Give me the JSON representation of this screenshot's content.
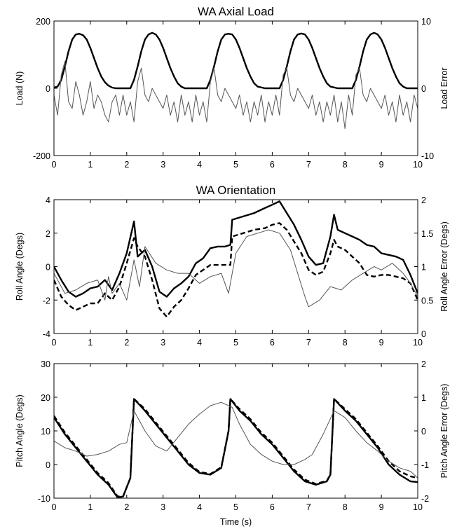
{
  "chart_data": [
    {
      "type": "line",
      "title": "WA Axial Load",
      "xlabel": "",
      "ylabel": "Load (N)",
      "y2label": "Load Error",
      "xlim": [
        0,
        10
      ],
      "ylim": [
        -200,
        200
      ],
      "y2lim": [
        -10,
        10
      ],
      "xticks": [
        "0",
        "1",
        "2",
        "3",
        "4",
        "5",
        "6",
        "7",
        "8",
        "9",
        "10"
      ],
      "yticks": [
        "-200",
        "0",
        "200"
      ],
      "y2ticks": [
        "-10",
        "0",
        "10"
      ],
      "grid": false,
      "series": [
        {
          "axis": "left",
          "style": "thick-solid",
          "color": "#000000",
          "x": [
            0,
            0.1,
            0.2,
            0.3,
            0.4,
            0.5,
            0.6,
            0.7,
            0.8,
            0.9,
            1.0,
            1.1,
            1.2,
            1.3,
            1.4,
            1.5,
            1.6,
            1.7,
            2.1,
            2.2,
            2.3,
            2.4,
            2.5,
            2.6,
            2.7,
            2.8,
            2.9,
            3.0,
            3.1,
            3.2,
            3.3,
            3.4,
            3.5,
            3.6,
            3.8,
            4.2,
            4.3,
            4.4,
            4.5,
            4.6,
            4.7,
            4.8,
            4.9,
            5.0,
            5.1,
            5.2,
            5.3,
            5.4,
            5.5,
            5.6,
            5.8,
            6.2,
            6.3,
            6.4,
            6.5,
            6.6,
            6.7,
            6.8,
            6.9,
            7.0,
            7.1,
            7.2,
            7.3,
            7.4,
            7.5,
            7.6,
            7.8,
            8.2,
            8.3,
            8.4,
            8.5,
            8.6,
            8.7,
            8.8,
            8.9,
            9.0,
            9.1,
            9.2,
            9.3,
            9.4,
            9.5,
            9.6,
            9.7,
            10.0
          ],
          "y": [
            2,
            5,
            25,
            65,
            110,
            145,
            160,
            162,
            158,
            145,
            120,
            90,
            60,
            35,
            18,
            8,
            2,
            0,
            0,
            25,
            65,
            110,
            145,
            160,
            165,
            160,
            145,
            120,
            90,
            60,
            35,
            15,
            5,
            0,
            0,
            0,
            25,
            65,
            110,
            145,
            160,
            162,
            160,
            145,
            120,
            90,
            60,
            35,
            15,
            5,
            0,
            0,
            25,
            65,
            110,
            145,
            160,
            163,
            160,
            145,
            120,
            90,
            60,
            35,
            15,
            5,
            0,
            0,
            25,
            65,
            110,
            145,
            160,
            165,
            160,
            145,
            120,
            90,
            60,
            35,
            15,
            5,
            0,
            0
          ]
        },
        {
          "axis": "right",
          "style": "thin-solid",
          "color": "#555555",
          "x": [
            0,
            0.1,
            0.2,
            0.3,
            0.4,
            0.5,
            0.6,
            0.7,
            0.8,
            0.9,
            1.0,
            1.1,
            1.2,
            1.3,
            1.4,
            1.5,
            1.6,
            1.7,
            1.8,
            1.9,
            2.0,
            2.1,
            2.2,
            2.3,
            2.4,
            2.5,
            2.6,
            2.7,
            2.8,
            2.9,
            3.0,
            3.1,
            3.2,
            3.3,
            3.4,
            3.5,
            3.6,
            3.7,
            3.8,
            3.9,
            4.0,
            4.1,
            4.2,
            4.3,
            4.4,
            4.5,
            4.6,
            4.7,
            4.8,
            4.9,
            5.0,
            5.1,
            5.2,
            5.3,
            5.4,
            5.5,
            5.6,
            5.7,
            5.8,
            5.9,
            6.0,
            6.1,
            6.2,
            6.3,
            6.4,
            6.5,
            6.6,
            6.7,
            6.8,
            6.9,
            7.0,
            7.1,
            7.2,
            7.3,
            7.4,
            7.5,
            7.6,
            7.7,
            7.8,
            7.9,
            8.0,
            8.1,
            8.2,
            8.3,
            8.4,
            8.5,
            8.6,
            8.7,
            8.8,
            8.9,
            9.0,
            9.1,
            9.2,
            9.3,
            9.4,
            9.5,
            9.6,
            9.7,
            9.8,
            9.9,
            10.0
          ],
          "y": [
            -1,
            -4,
            2,
            4,
            -2,
            -3,
            1,
            -1,
            -4,
            -2,
            1,
            -3,
            -1,
            -2,
            -4,
            -5,
            -2,
            -1,
            -4,
            -1,
            -4,
            -2,
            -5,
            1,
            3,
            -1,
            -2,
            0,
            -1,
            -2,
            -3,
            -1,
            -4,
            -2,
            -5,
            -1,
            -4,
            -2,
            -5,
            -1,
            -4,
            -2,
            -5,
            1,
            3,
            -1,
            -2,
            0,
            -1,
            -2,
            -3,
            -1,
            -4,
            -2,
            -5,
            -2,
            -4,
            -1,
            -5,
            -2,
            -4,
            -1,
            -4,
            2,
            3,
            -1,
            -2,
            0,
            -1,
            -2,
            -3,
            -1,
            -4,
            -2,
            -5,
            -2,
            -4,
            -1,
            -5,
            -2,
            -6,
            -1,
            -4,
            2,
            3,
            -1,
            -2,
            0,
            -1,
            -2,
            -3,
            -1,
            -4,
            -2,
            -5,
            -1,
            -4,
            -2,
            -5,
            -1,
            -3
          ]
        }
      ]
    },
    {
      "type": "line",
      "title": "WA Orientation",
      "xlabel": "",
      "ylabel": "Roll Angle (Degs)",
      "y2label": "Roll Angle Error (Degs)",
      "xlim": [
        0,
        10
      ],
      "ylim": [
        -4,
        4
      ],
      "y2lim": [
        0,
        2
      ],
      "xticks": [
        "0",
        "1",
        "2",
        "3",
        "4",
        "5",
        "6",
        "7",
        "8",
        "9",
        "10"
      ],
      "yticks": [
        "-4",
        "-2",
        "0",
        "2",
        "4"
      ],
      "y2ticks": [
        "0",
        "0.5",
        "1",
        "1.5",
        "2"
      ],
      "grid": false,
      "series": [
        {
          "axis": "left",
          "style": "thick-solid",
          "color": "#000000",
          "x": [
            0,
            0.2,
            0.4,
            0.6,
            0.8,
            1.0,
            1.2,
            1.4,
            1.6,
            1.8,
            2.0,
            2.2,
            2.3,
            2.5,
            2.7,
            2.9,
            3.1,
            3.3,
            3.5,
            3.7,
            3.9,
            4.1,
            4.3,
            4.5,
            4.7,
            4.85,
            4.9,
            5.2,
            5.5,
            5.8,
            6.0,
            6.2,
            6.4,
            6.6,
            6.8,
            7.0,
            7.2,
            7.4,
            7.6,
            7.7,
            7.8,
            8.0,
            8.2,
            8.4,
            8.6,
            8.8,
            9.0,
            9.2,
            9.4,
            9.6,
            9.8,
            10.0
          ],
          "y": [
            0,
            -0.8,
            -1.5,
            -1.8,
            -1.6,
            -1.3,
            -1.2,
            -0.8,
            -1.4,
            -0.4,
            0.8,
            2.7,
            0.6,
            1.0,
            0.0,
            -1.5,
            -1.8,
            -1.3,
            -1.0,
            -0.6,
            0.2,
            0.5,
            1.1,
            1.2,
            1.2,
            1.3,
            2.8,
            3.0,
            3.2,
            3.5,
            3.7,
            3.9,
            3.2,
            2.5,
            1.6,
            0.6,
            0.1,
            0.2,
            1.8,
            3.1,
            2.2,
            2.0,
            1.8,
            1.6,
            1.3,
            1.2,
            0.8,
            0.7,
            0.6,
            0.4,
            -0.5,
            -1.6
          ]
        },
        {
          "axis": "left",
          "style": "thick-dashed",
          "color": "#000000",
          "x": [
            0,
            0.2,
            0.4,
            0.6,
            0.8,
            1.0,
            1.2,
            1.4,
            1.6,
            1.8,
            2.0,
            2.2,
            2.3,
            2.5,
            2.7,
            2.9,
            3.1,
            3.3,
            3.5,
            3.7,
            3.9,
            4.1,
            4.3,
            4.5,
            4.7,
            4.85,
            4.9,
            5.2,
            5.5,
            5.8,
            6.0,
            6.2,
            6.4,
            6.6,
            6.8,
            7.0,
            7.2,
            7.4,
            7.6,
            7.7,
            7.8,
            8.0,
            8.2,
            8.4,
            8.6,
            8.8,
            9.0,
            9.2,
            9.4,
            9.6,
            9.8,
            10.0
          ],
          "y": [
            -0.8,
            -1.8,
            -2.3,
            -2.6,
            -2.4,
            -2.2,
            -2.2,
            -1.6,
            -2.0,
            -1.2,
            0.2,
            1.7,
            1.2,
            0.6,
            -0.8,
            -2.5,
            -3.0,
            -2.4,
            -2.0,
            -1.3,
            -0.5,
            -0.2,
            0.1,
            0.1,
            0.1,
            0.1,
            1.8,
            2.0,
            2.2,
            2.3,
            2.5,
            2.6,
            2.2,
            1.5,
            0.8,
            -0.2,
            -0.5,
            -0.3,
            0.8,
            1.6,
            1.2,
            1.0,
            0.6,
            0.2,
            -0.5,
            -0.6,
            -0.5,
            -0.5,
            -0.6,
            -0.7,
            -1.0,
            -2.0
          ]
        },
        {
          "axis": "right",
          "style": "thin-solid",
          "color": "#555555",
          "x": [
            0,
            0.3,
            0.6,
            0.9,
            1.2,
            1.4,
            1.5,
            1.6,
            1.8,
            2.0,
            2.2,
            2.35,
            2.5,
            2.8,
            3.1,
            3.4,
            3.7,
            4.0,
            4.3,
            4.6,
            4.8,
            5.0,
            5.3,
            5.6,
            5.9,
            6.2,
            6.5,
            6.7,
            6.9,
            7.0,
            7.3,
            7.6,
            7.9,
            8.2,
            8.5,
            8.8,
            9.0,
            9.3,
            9.6,
            9.8,
            10.0
          ],
          "y": [
            0.9,
            0.6,
            0.65,
            0.75,
            0.8,
            0.5,
            0.85,
            0.6,
            0.75,
            0.5,
            1.1,
            0.7,
            1.3,
            1.05,
            0.95,
            0.9,
            0.9,
            0.75,
            0.85,
            0.9,
            0.6,
            1.2,
            1.45,
            1.5,
            1.55,
            1.5,
            1.25,
            0.9,
            0.55,
            0.4,
            0.5,
            0.7,
            0.65,
            0.8,
            0.9,
            1.0,
            0.95,
            1.05,
            0.9,
            0.75,
            0.55
          ]
        }
      ]
    },
    {
      "type": "line",
      "title": "",
      "xlabel": "Time (s)",
      "ylabel": "Pitch Angle (Degs)",
      "y2label": "Pitch Angle Error (Degs)",
      "xlim": [
        0,
        10
      ],
      "ylim": [
        -10,
        30
      ],
      "y2lim": [
        -2,
        2
      ],
      "xticks": [
        "0",
        "1",
        "2",
        "3",
        "4",
        "5",
        "6",
        "7",
        "8",
        "9",
        "10"
      ],
      "yticks": [
        "-10",
        "0",
        "10",
        "20",
        "30"
      ],
      "y2ticks": [
        "-2",
        "-1",
        "0",
        "1",
        "2"
      ],
      "grid": false,
      "series": [
        {
          "axis": "left",
          "style": "thick-solid",
          "color": "#000000",
          "x": [
            0,
            0.3,
            0.6,
            0.9,
            1.2,
            1.5,
            1.75,
            1.9,
            2.1,
            2.2,
            2.5,
            2.8,
            3.1,
            3.4,
            3.7,
            4.0,
            4.3,
            4.6,
            4.8,
            4.85,
            5.1,
            5.4,
            5.7,
            6.0,
            6.3,
            6.6,
            6.9,
            7.2,
            7.5,
            7.6,
            7.7,
            8.0,
            8.3,
            8.6,
            8.9,
            9.2,
            9.5,
            9.8,
            10.0
          ],
          "y": [
            14,
            9,
            5,
            1,
            -3,
            -6,
            -9.8,
            -9.5,
            -4,
            19.5,
            16,
            12,
            8,
            4,
            0,
            -2.5,
            -3,
            -1,
            10,
            19.5,
            16,
            13,
            9,
            6,
            2,
            -2,
            -5,
            -6,
            -5,
            -3,
            19.5,
            16,
            13,
            9,
            5,
            0,
            -3,
            -5,
            -5.2
          ]
        },
        {
          "axis": "left",
          "style": "thick-dashed",
          "color": "#000000",
          "x": [
            0,
            0.3,
            0.6,
            0.9,
            1.2,
            1.5,
            1.75,
            1.9,
            2.1,
            2.2,
            2.5,
            2.8,
            3.1,
            3.4,
            3.7,
            4.0,
            4.3,
            4.6,
            4.8,
            4.85,
            5.1,
            5.4,
            5.7,
            6.0,
            6.3,
            6.6,
            6.9,
            7.2,
            7.5,
            7.6,
            7.7,
            8.0,
            8.3,
            8.6,
            8.9,
            9.2,
            9.5,
            9.8,
            10.0
          ],
          "y": [
            14.5,
            9.5,
            5.5,
            1.5,
            -2.5,
            -5.5,
            -9.5,
            -9.5,
            -4,
            19.5,
            16.5,
            12.5,
            8.5,
            4.5,
            0.5,
            -2.2,
            -2.8,
            -0.8,
            10,
            19.5,
            16.5,
            13.5,
            9.5,
            6.5,
            2.5,
            -1.5,
            -4.5,
            -5.8,
            -4.8,
            -3,
            19.5,
            16.5,
            13.5,
            9.5,
            5.5,
            1,
            -2,
            -3.5,
            -4
          ]
        },
        {
          "axis": "right",
          "style": "thin-solid",
          "color": "#555555",
          "x": [
            0,
            0.3,
            0.6,
            0.9,
            1.2,
            1.5,
            1.8,
            2.0,
            2.2,
            2.5,
            2.8,
            3.1,
            3.4,
            3.7,
            4.0,
            4.3,
            4.6,
            4.9,
            5.1,
            5.4,
            5.7,
            6.0,
            6.3,
            6.6,
            6.9,
            7.1,
            7.4,
            7.7,
            8.0,
            8.3,
            8.6,
            8.9,
            9.2,
            9.5,
            9.8,
            10.0
          ],
          "y": [
            -0.3,
            -0.5,
            -0.6,
            -0.75,
            -0.7,
            -0.6,
            -0.4,
            -0.35,
            0.6,
            0.0,
            -0.45,
            -0.6,
            -0.2,
            0.2,
            0.5,
            0.75,
            0.85,
            0.7,
            0.2,
            -0.4,
            -0.7,
            -0.9,
            -1.0,
            -1.0,
            -0.85,
            -0.7,
            -0.1,
            0.6,
            0.4,
            0.0,
            -0.35,
            -0.6,
            -0.9,
            -1.1,
            -1.2,
            -1.4
          ]
        }
      ]
    }
  ]
}
